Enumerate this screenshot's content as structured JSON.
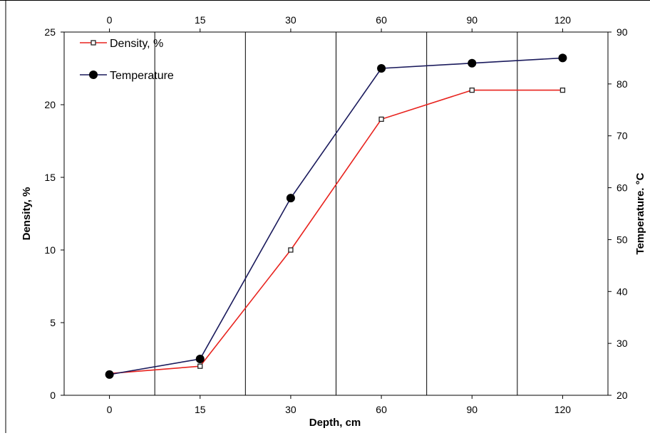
{
  "chart_data": {
    "type": "line",
    "categories": [
      "0",
      "15",
      "30",
      "60",
      "90",
      "120"
    ],
    "xlabel": "Depth, cm",
    "ylabel_left": "Density, %",
    "ylabel_right": "Temperature. °C",
    "ylim_left": [
      0,
      25
    ],
    "ylim_right": [
      20,
      90
    ],
    "yticks_left": [
      0,
      5,
      10,
      15,
      20,
      25
    ],
    "yticks_right": [
      20,
      30,
      40,
      50,
      60,
      70,
      80,
      90
    ],
    "grid": "vertical",
    "legend_position": "top-left",
    "series": [
      {
        "name": "Density, %",
        "axis": "left",
        "color": "#e8231e",
        "marker": "square",
        "values": [
          1.5,
          2.0,
          10.0,
          19.0,
          21.0,
          21.0
        ]
      },
      {
        "name": "Temperature",
        "axis": "right",
        "color": "#1a1a5c",
        "marker": "circle",
        "values": [
          24,
          27,
          58,
          83,
          84,
          85
        ]
      }
    ]
  }
}
